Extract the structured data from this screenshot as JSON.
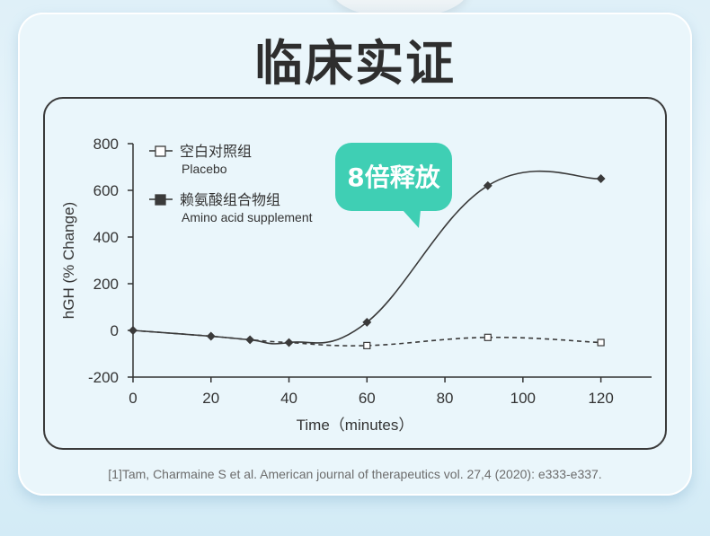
{
  "heading": "临床实证",
  "citation": "[1]Tam, Charmaine S et al. American journal of therapeutics vol. 27,4 (2020): e333-e337.",
  "callout": "8倍释放",
  "colors": {
    "accent": "#3fcfb4",
    "line": "#3a3a3a"
  },
  "chart_data": {
    "type": "line",
    "xlabel": "Time（minutes）",
    "ylabel": "hGH (% Change)",
    "xlim": [
      0,
      133
    ],
    "ylim": [
      -200,
      800
    ],
    "xticks": [
      0,
      20,
      40,
      60,
      80,
      100,
      120
    ],
    "yticks": [
      -200,
      0,
      200,
      400,
      600,
      800
    ],
    "series": [
      {
        "name": "空白对照组",
        "name_en": "Placebo",
        "marker": "open-square",
        "dashed": true,
        "x": [
          0,
          20,
          30,
          40,
          60,
          91,
          120
        ],
        "y": [
          0,
          -25,
          -40,
          -52,
          -65,
          -30,
          -52
        ]
      },
      {
        "name": "赖氨酸组合物组",
        "name_en": "Amino acid supplement",
        "marker": "filled-square",
        "dashed": false,
        "x": [
          0,
          20,
          30,
          40,
          60,
          91,
          120
        ],
        "y": [
          0,
          -25,
          -40,
          -52,
          35,
          620,
          650
        ]
      }
    ]
  }
}
